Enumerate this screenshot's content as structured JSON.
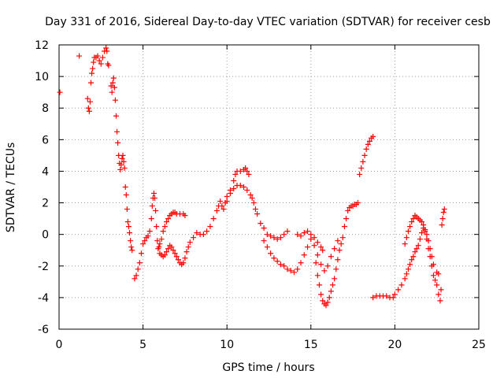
{
  "chart_data": {
    "type": "scatter",
    "title": "Day 331 of 2016, Sidereal Day-to-day VTEC variation (SDTVAR) for receiver cesb",
    "xlabel": "GPS time / hours",
    "ylabel": "SDTVAR / TECUs",
    "xlim": [
      0,
      25
    ],
    "ylim": [
      -6,
      12
    ],
    "xticks": [
      0,
      5,
      10,
      15,
      20,
      25
    ],
    "yticks": [
      -6,
      -4,
      -2,
      0,
      2,
      4,
      6,
      8,
      10,
      12
    ],
    "grid": true,
    "marker": "+",
    "color": "#ff0000",
    "series": [
      {
        "name": "SDTVAR",
        "points": [
          [
            0.05,
            9.0
          ],
          [
            1.2,
            11.3
          ],
          [
            1.7,
            8.6
          ],
          [
            1.75,
            8.0
          ],
          [
            1.8,
            7.8
          ],
          [
            1.85,
            8.4
          ],
          [
            1.9,
            9.6
          ],
          [
            1.95,
            10.2
          ],
          [
            2.0,
            10.5
          ],
          [
            2.05,
            10.9
          ],
          [
            2.1,
            11.2
          ],
          [
            2.2,
            11.2
          ],
          [
            2.3,
            11.3
          ],
          [
            2.4,
            11.0
          ],
          [
            2.5,
            10.8
          ],
          [
            2.6,
            11.2
          ],
          [
            2.7,
            11.6
          ],
          [
            2.8,
            11.8
          ],
          [
            2.85,
            11.6
          ],
          [
            2.9,
            10.8
          ],
          [
            2.95,
            10.7
          ],
          [
            3.1,
            9.4
          ],
          [
            3.15,
            9.0
          ],
          [
            3.2,
            9.6
          ],
          [
            3.25,
            9.9
          ],
          [
            3.3,
            9.3
          ],
          [
            3.35,
            8.5
          ],
          [
            3.4,
            7.5
          ],
          [
            3.45,
            6.5
          ],
          [
            3.5,
            5.8
          ],
          [
            3.55,
            5.0
          ],
          [
            3.6,
            4.5
          ],
          [
            3.65,
            4.1
          ],
          [
            3.7,
            4.4
          ],
          [
            3.75,
            4.8
          ],
          [
            3.8,
            5.0
          ],
          [
            3.85,
            4.6
          ],
          [
            3.9,
            4.2
          ],
          [
            3.95,
            3.0
          ],
          [
            4.0,
            2.5
          ],
          [
            4.05,
            1.6
          ],
          [
            4.1,
            0.8
          ],
          [
            4.15,
            0.5
          ],
          [
            4.2,
            0.1
          ],
          [
            4.25,
            -0.4
          ],
          [
            4.3,
            -0.8
          ],
          [
            4.35,
            -1.0
          ],
          [
            4.5,
            -2.8
          ],
          [
            4.6,
            -2.6
          ],
          [
            4.7,
            -2.2
          ],
          [
            4.8,
            -1.8
          ],
          [
            4.9,
            -1.2
          ],
          [
            5.0,
            -0.6
          ],
          [
            5.1,
            -0.4
          ],
          [
            5.2,
            -0.2
          ],
          [
            5.3,
            -0.1
          ],
          [
            5.4,
            0.2
          ],
          [
            5.5,
            1.0
          ],
          [
            5.55,
            1.8
          ],
          [
            5.6,
            2.3
          ],
          [
            5.65,
            2.6
          ],
          [
            5.7,
            2.3
          ],
          [
            5.75,
            1.5
          ],
          [
            5.8,
            0.5
          ],
          [
            5.85,
            -0.4
          ],
          [
            5.9,
            -0.9
          ],
          [
            5.95,
            -0.8
          ],
          [
            6.0,
            -0.6
          ],
          [
            6.1,
            -0.3
          ],
          [
            6.2,
            0.2
          ],
          [
            6.3,
            0.5
          ],
          [
            6.4,
            0.8
          ],
          [
            6.5,
            1.0
          ],
          [
            6.6,
            1.2
          ],
          [
            6.7,
            1.3
          ],
          [
            6.8,
            1.4
          ],
          [
            6.9,
            1.4
          ],
          [
            7.0,
            1.3
          ],
          [
            7.2,
            1.3
          ],
          [
            7.4,
            1.3
          ],
          [
            7.5,
            1.2
          ],
          [
            6.0,
            -1.2
          ],
          [
            6.1,
            -1.3
          ],
          [
            6.2,
            -1.4
          ],
          [
            6.3,
            -1.3
          ],
          [
            6.4,
            -1.1
          ],
          [
            6.5,
            -0.9
          ],
          [
            6.6,
            -0.7
          ],
          [
            6.7,
            -0.8
          ],
          [
            6.8,
            -1.0
          ],
          [
            6.9,
            -1.2
          ],
          [
            7.0,
            -1.4
          ],
          [
            7.1,
            -1.6
          ],
          [
            7.2,
            -1.8
          ],
          [
            7.3,
            -1.9
          ],
          [
            7.4,
            -1.8
          ],
          [
            7.5,
            -1.5
          ],
          [
            7.6,
            -1.1
          ],
          [
            7.7,
            -0.8
          ],
          [
            7.8,
            -0.5
          ],
          [
            8.0,
            -0.2
          ],
          [
            8.2,
            0.1
          ],
          [
            8.4,
            0.0
          ],
          [
            8.6,
            0.0
          ],
          [
            8.8,
            0.2
          ],
          [
            9.0,
            0.5
          ],
          [
            9.2,
            1.0
          ],
          [
            9.4,
            1.5
          ],
          [
            9.5,
            1.8
          ],
          [
            9.6,
            2.1
          ],
          [
            9.7,
            1.8
          ],
          [
            9.8,
            1.6
          ],
          [
            9.9,
            2.0
          ],
          [
            10.0,
            2.4
          ],
          [
            10.2,
            2.6
          ],
          [
            10.4,
            2.9
          ],
          [
            10.6,
            3.1
          ],
          [
            10.8,
            3.1
          ],
          [
            11.0,
            3.0
          ],
          [
            11.2,
            2.8
          ],
          [
            11.4,
            2.5
          ],
          [
            11.5,
            2.3
          ],
          [
            11.6,
            2.0
          ],
          [
            11.7,
            1.6
          ],
          [
            11.8,
            1.3
          ],
          [
            10.0,
            2.1
          ],
          [
            10.2,
            2.8
          ],
          [
            10.4,
            3.4
          ],
          [
            10.5,
            3.8
          ],
          [
            10.6,
            4.0
          ],
          [
            10.8,
            4.0
          ],
          [
            11.0,
            4.1
          ],
          [
            11.1,
            4.2
          ],
          [
            11.2,
            4.0
          ],
          [
            11.3,
            3.8
          ],
          [
            12.0,
            0.7
          ],
          [
            12.2,
            0.4
          ],
          [
            12.4,
            0.0
          ],
          [
            12.6,
            -0.1
          ],
          [
            12.8,
            -0.2
          ],
          [
            13.0,
            -0.3
          ],
          [
            13.2,
            -0.2
          ],
          [
            13.4,
            0.0
          ],
          [
            13.6,
            0.2
          ],
          [
            12.2,
            -0.4
          ],
          [
            12.4,
            -0.8
          ],
          [
            12.6,
            -1.2
          ],
          [
            12.8,
            -1.5
          ],
          [
            13.0,
            -1.7
          ],
          [
            13.2,
            -1.9
          ],
          [
            13.4,
            -2.0
          ],
          [
            13.6,
            -2.2
          ],
          [
            13.8,
            -2.3
          ],
          [
            14.0,
            -2.4
          ],
          [
            14.2,
            -2.2
          ],
          [
            14.4,
            -1.8
          ],
          [
            14.6,
            -1.3
          ],
          [
            14.8,
            -0.8
          ],
          [
            15.0,
            -0.3
          ],
          [
            15.2,
            -0.7
          ],
          [
            15.4,
            -1.3
          ],
          [
            15.6,
            -1.9
          ],
          [
            15.8,
            -2.3
          ],
          [
            16.0,
            -2.0
          ],
          [
            16.2,
            -1.4
          ],
          [
            16.4,
            -0.9
          ],
          [
            16.6,
            -0.4
          ],
          [
            14.2,
            0.0
          ],
          [
            14.4,
            -0.1
          ],
          [
            14.6,
            0.1
          ],
          [
            14.8,
            0.2
          ],
          [
            15.0,
            0.0
          ],
          [
            15.2,
            -0.2
          ],
          [
            15.4,
            -0.5
          ],
          [
            15.6,
            -0.8
          ],
          [
            15.7,
            -1.0
          ],
          [
            15.3,
            -1.8
          ],
          [
            15.4,
            -2.6
          ],
          [
            15.5,
            -3.2
          ],
          [
            15.6,
            -3.8
          ],
          [
            15.7,
            -4.2
          ],
          [
            15.8,
            -4.4
          ],
          [
            15.9,
            -4.5
          ],
          [
            16.0,
            -4.3
          ],
          [
            16.1,
            -4.0
          ],
          [
            16.2,
            -3.6
          ],
          [
            16.3,
            -3.2
          ],
          [
            16.4,
            -2.8
          ],
          [
            16.5,
            -2.2
          ],
          [
            16.6,
            -1.6
          ],
          [
            16.7,
            -1.0
          ],
          [
            16.8,
            -0.6
          ],
          [
            16.9,
            -0.2
          ],
          [
            17.0,
            0.5
          ],
          [
            17.1,
            1.0
          ],
          [
            17.2,
            1.5
          ],
          [
            17.3,
            1.7
          ],
          [
            17.4,
            1.8
          ],
          [
            17.5,
            1.8
          ],
          [
            17.6,
            1.9
          ],
          [
            17.7,
            1.9
          ],
          [
            17.8,
            2.0
          ],
          [
            17.9,
            3.8
          ],
          [
            18.0,
            4.2
          ],
          [
            18.1,
            4.6
          ],
          [
            18.2,
            5.0
          ],
          [
            18.3,
            5.4
          ],
          [
            18.4,
            5.7
          ],
          [
            18.5,
            5.9
          ],
          [
            18.6,
            6.1
          ],
          [
            18.7,
            6.2
          ],
          [
            18.7,
            -4.0
          ],
          [
            18.9,
            -3.9
          ],
          [
            19.1,
            -3.9
          ],
          [
            19.3,
            -3.9
          ],
          [
            19.5,
            -3.9
          ],
          [
            19.7,
            -4.0
          ],
          [
            19.9,
            -4.0
          ],
          [
            20.0,
            -3.8
          ],
          [
            20.2,
            -3.5
          ],
          [
            20.4,
            -3.2
          ],
          [
            20.6,
            -2.8
          ],
          [
            20.7,
            -2.5
          ],
          [
            20.8,
            -2.2
          ],
          [
            20.9,
            -1.9
          ],
          [
            21.0,
            -1.6
          ],
          [
            21.1,
            -1.4
          ],
          [
            21.2,
            -1.1
          ],
          [
            21.3,
            -0.9
          ],
          [
            21.4,
            -0.7
          ],
          [
            21.5,
            -0.3
          ],
          [
            21.6,
            0.1
          ],
          [
            21.7,
            0.4
          ],
          [
            21.8,
            0.2
          ],
          [
            21.9,
            -0.3
          ],
          [
            22.0,
            -0.9
          ],
          [
            22.1,
            -1.4
          ],
          [
            22.2,
            -2.0
          ],
          [
            22.3,
            -2.6
          ],
          [
            22.4,
            -2.9
          ],
          [
            22.5,
            -3.2
          ],
          [
            22.6,
            -3.8
          ],
          [
            22.7,
            -4.2
          ],
          [
            22.75,
            -3.5
          ],
          [
            20.6,
            -0.6
          ],
          [
            20.7,
            -0.2
          ],
          [
            20.8,
            0.2
          ],
          [
            20.9,
            0.5
          ],
          [
            21.0,
            0.8
          ],
          [
            21.1,
            1.0
          ],
          [
            21.2,
            1.2
          ],
          [
            21.3,
            1.1
          ],
          [
            21.4,
            1.0
          ],
          [
            21.5,
            0.9
          ],
          [
            21.6,
            0.8
          ],
          [
            21.7,
            0.6
          ],
          [
            21.8,
            0.3
          ],
          [
            21.9,
            0.0
          ],
          [
            22.0,
            -0.4
          ],
          [
            22.1,
            -0.9
          ],
          [
            22.2,
            -1.4
          ],
          [
            22.3,
            -1.9
          ],
          [
            22.5,
            -2.4
          ],
          [
            22.6,
            -2.5
          ],
          [
            22.8,
            0.6
          ],
          [
            22.85,
            1.0
          ],
          [
            22.9,
            1.4
          ],
          [
            22.95,
            1.6
          ]
        ]
      }
    ]
  }
}
